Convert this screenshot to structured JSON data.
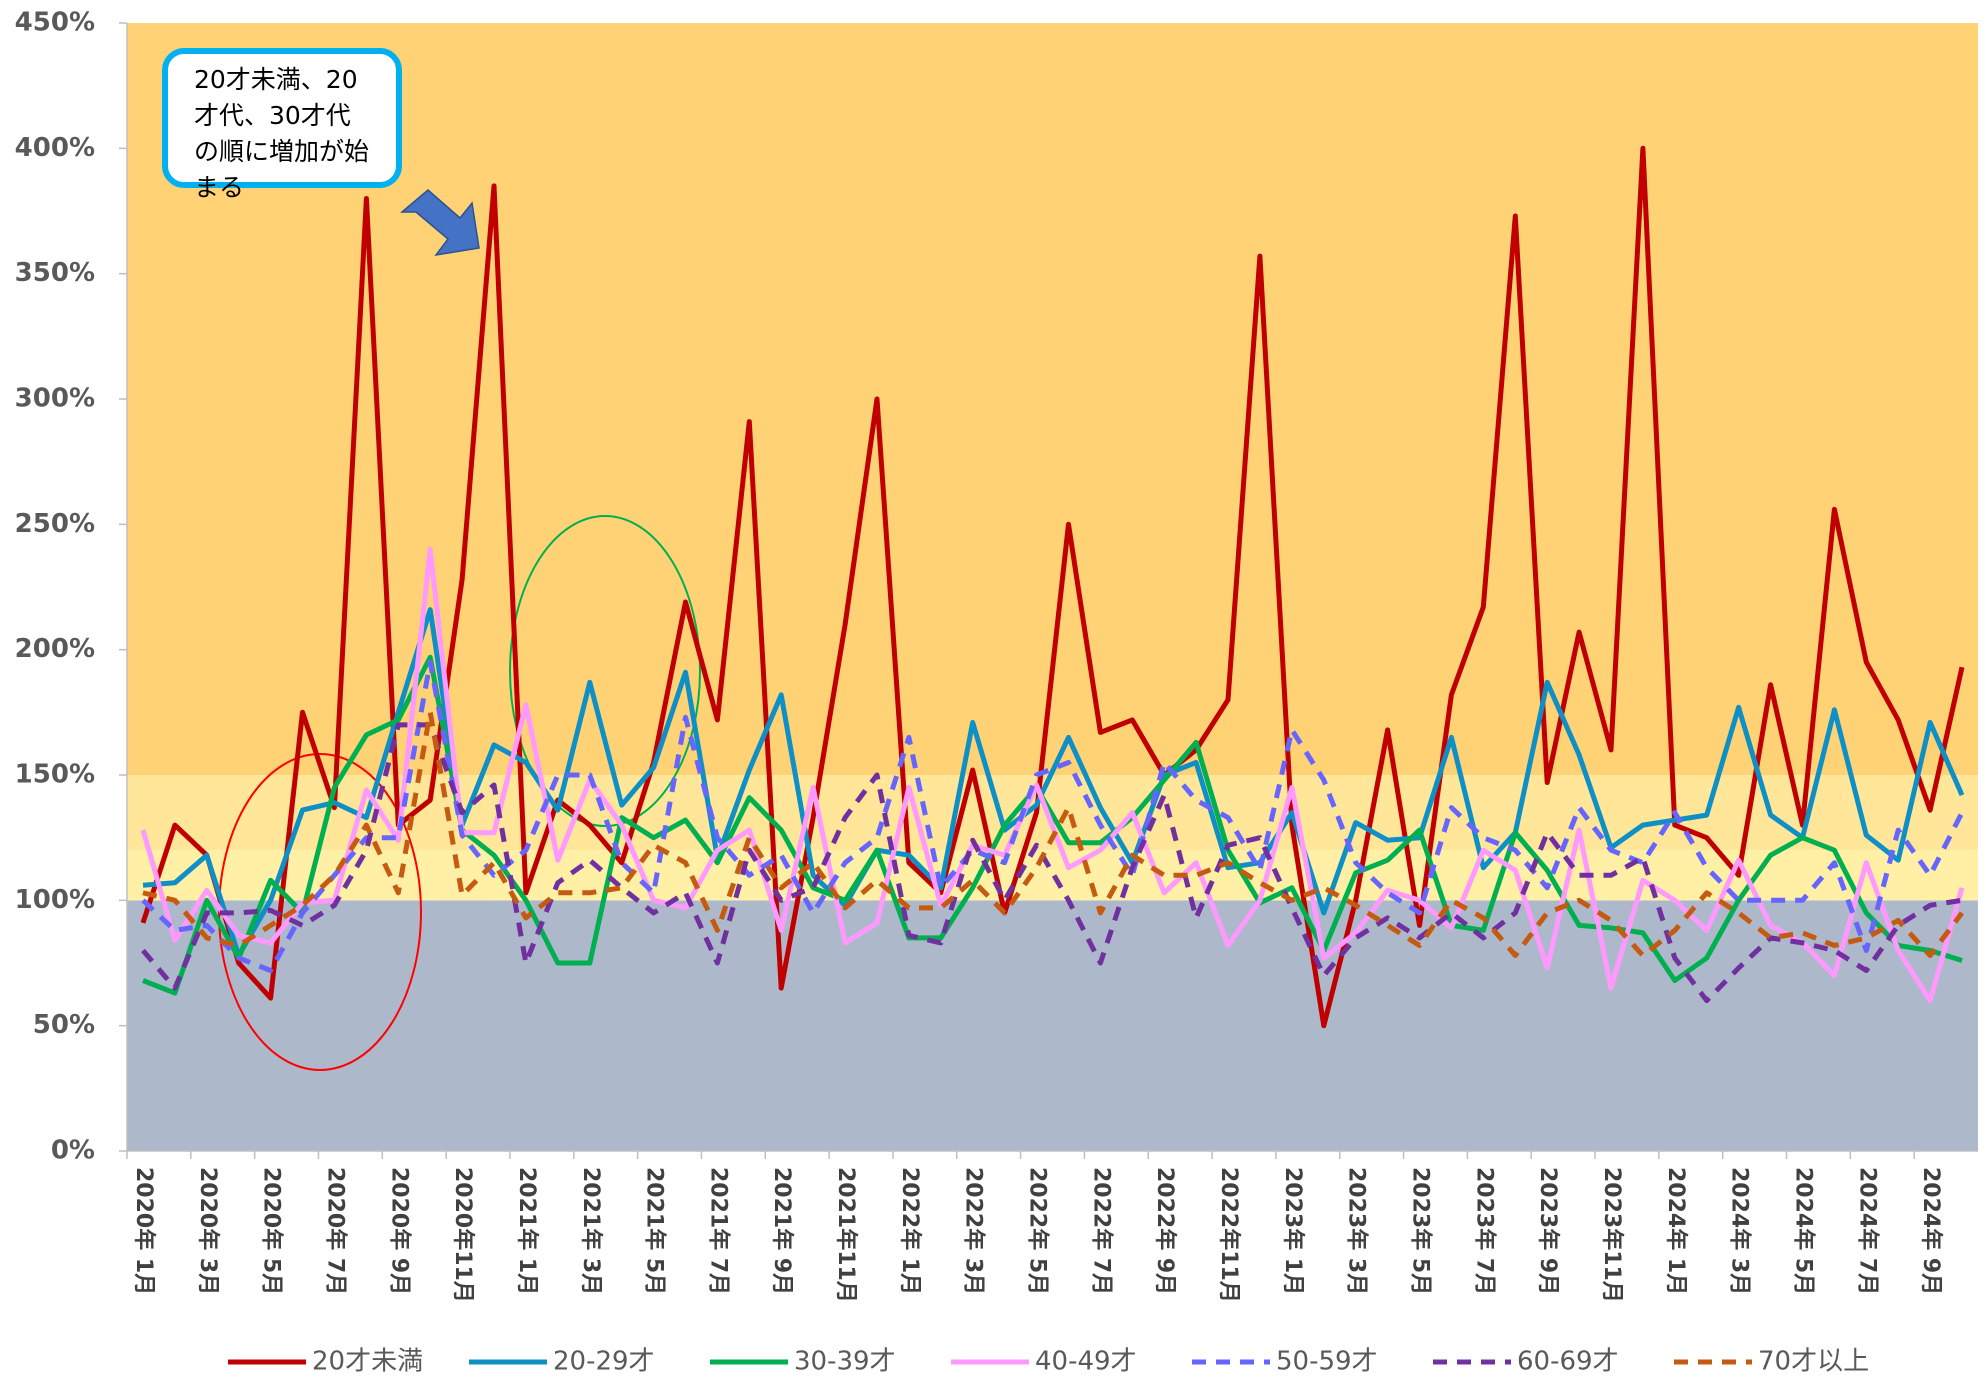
{
  "chart_data": {
    "type": "line",
    "categories": [
      "2020年 1月",
      null,
      "2020年 3月",
      null,
      "2020年 5月",
      null,
      "2020年 7月",
      null,
      "2020年 9月",
      null,
      "2020年11月",
      null,
      "2021年 1月",
      null,
      "2021年 3月",
      null,
      "2021年 5月",
      null,
      "2021年 7月",
      null,
      "2021年 9月",
      null,
      "2021年11月",
      null,
      "2022年 1月",
      null,
      "2022年 3月",
      null,
      "2022年 5月",
      null,
      "2022年 7月",
      null,
      "2022年 9月",
      null,
      "2022年11月",
      null,
      "2023年 1月",
      null,
      "2023年 3月",
      null,
      "2023年 5月",
      null,
      "2023年 7月",
      null,
      "2023年 9月",
      null,
      "2023年11月",
      null,
      "2024年 1月",
      null,
      "2024年 3月",
      null,
      "2024年 5月",
      null,
      "2024年 7月",
      null,
      "2024年 9月",
      null
    ],
    "series": [
      {
        "name": "20才未満",
        "color": "#c00000",
        "dashed": false,
        "values": [
          91,
          130,
          118,
          75,
          61,
          175,
          137,
          380,
          130,
          140,
          228,
          385,
          103,
          140,
          130,
          115,
          155,
          219,
          172,
          291,
          65,
          133,
          210,
          300,
          115,
          103,
          152,
          95,
          135,
          250,
          167,
          172,
          150,
          160,
          180,
          357,
          130,
          50,
          100,
          168,
          90,
          182,
          217,
          373,
          147,
          207,
          160,
          400,
          130,
          125,
          110,
          186,
          130,
          256,
          195,
          172,
          136,
          193
        ]
      },
      {
        "name": "20-29才",
        "color": "#0e8fc6",
        "dashed": false,
        "values": [
          106,
          107,
          118,
          78,
          100,
          136,
          139,
          133,
          175,
          216,
          130,
          162,
          155,
          136,
          187,
          138,
          153,
          191,
          117,
          152,
          182,
          110,
          98,
          120,
          118,
          105,
          171,
          128,
          138,
          165,
          137,
          115,
          150,
          155,
          113,
          115,
          135,
          95,
          131,
          124,
          125,
          165,
          113,
          127,
          187,
          158,
          121,
          130,
          132,
          134,
          177,
          134,
          125,
          176,
          126,
          116,
          171,
          142
        ]
      },
      {
        "name": "30-39才",
        "color": "#00b050",
        "dashed": false,
        "values": [
          68,
          63,
          100,
          77,
          108,
          95,
          145,
          166,
          172,
          197,
          128,
          118,
          100,
          75,
          75,
          133,
          125,
          132,
          115,
          141,
          128,
          105,
          100,
          120,
          85,
          85,
          105,
          130,
          145,
          123,
          123,
          133,
          148,
          163,
          120,
          99,
          105,
          80,
          111,
          116,
          128,
          90,
          88,
          127,
          112,
          90,
          89,
          87,
          68,
          77,
          100,
          118,
          125,
          120,
          95,
          82,
          80,
          76
        ]
      },
      {
        "name": "40-49才",
        "color": "#ff99ff",
        "dashed": false,
        "values": [
          128,
          84,
          104,
          86,
          83,
          99,
          100,
          144,
          124,
          240,
          127,
          127,
          178,
          116,
          148,
          130,
          100,
          97,
          120,
          128,
          88,
          145,
          83,
          91,
          145,
          98,
          122,
          118,
          146,
          113,
          120,
          135,
          103,
          115,
          82,
          100,
          145,
          77,
          87,
          104,
          100,
          89,
          120,
          112,
          73,
          128,
          65,
          108,
          100,
          88,
          116,
          90,
          83,
          70,
          115,
          80,
          60,
          105
        ]
      },
      {
        "name": "50-59才",
        "color": "#6666ff",
        "dashed": true,
        "values": [
          100,
          88,
          90,
          77,
          72,
          95,
          110,
          125,
          125,
          195,
          126,
          110,
          120,
          150,
          150,
          115,
          103,
          173,
          125,
          110,
          118,
          95,
          115,
          125,
          165,
          105,
          120,
          115,
          150,
          155,
          130,
          110,
          155,
          140,
          133,
          112,
          168,
          148,
          115,
          103,
          95,
          137,
          125,
          120,
          105,
          137,
          120,
          115,
          135,
          113,
          100,
          100,
          100,
          115,
          80,
          128,
          110,
          135
        ]
      },
      {
        "name": "60-69才",
        "color": "#7030a0",
        "dashed": true,
        "values": [
          80,
          65,
          95,
          95,
          96,
          90,
          98,
          120,
          170,
          170,
          135,
          146,
          75,
          107,
          116,
          105,
          95,
          103,
          75,
          120,
          100,
          105,
          133,
          150,
          86,
          83,
          124,
          100,
          122,
          100,
          75,
          113,
          142,
          93,
          122,
          125,
          97,
          70,
          85,
          93,
          85,
          95,
          85,
          95,
          127,
          110,
          110,
          117,
          77,
          60,
          73,
          85,
          83,
          80,
          72,
          90,
          98,
          100
        ]
      },
      {
        "name": "70才以上",
        "color": "#c55a11",
        "dashed": true,
        "values": [
          103,
          100,
          85,
          82,
          90,
          98,
          110,
          130,
          103,
          175,
          102,
          115,
          93,
          103,
          103,
          105,
          122,
          115,
          88,
          125,
          105,
          115,
          97,
          108,
          97,
          97,
          108,
          95,
          113,
          137,
          95,
          118,
          110,
          110,
          115,
          107,
          100,
          105,
          98,
          90,
          82,
          100,
          93,
          78,
          95,
          100,
          92,
          78,
          88,
          103,
          95,
          85,
          87,
          82,
          85,
          92,
          78,
          95
        ]
      }
    ],
    "ylim": [
      0,
      450
    ],
    "yticks": [
      {
        "value": 0,
        "label": "0%"
      },
      {
        "value": 50,
        "label": "50%"
      },
      {
        "value": 100,
        "label": "100%"
      },
      {
        "value": 150,
        "label": "150%"
      },
      {
        "value": 200,
        "label": "200%"
      },
      {
        "value": 250,
        "label": "250%"
      },
      {
        "value": 300,
        "label": "300%"
      },
      {
        "value": 350,
        "label": "350%"
      },
      {
        "value": 400,
        "label": "400%"
      },
      {
        "value": 450,
        "label": "450%"
      }
    ],
    "bands": [
      {
        "from": 0,
        "to": 100,
        "color": "#adb9ca"
      },
      {
        "from": 100,
        "to": 120,
        "color": "#fff0a6"
      },
      {
        "from": 120,
        "to": 150,
        "color": "#ffe699"
      },
      {
        "from": 150,
        "to": 450,
        "color": "#ffd275"
      }
    ],
    "grid": false,
    "legend": "bottom",
    "annotation": "20才未満、20才代、30才代の順に増加が始まる"
  }
}
